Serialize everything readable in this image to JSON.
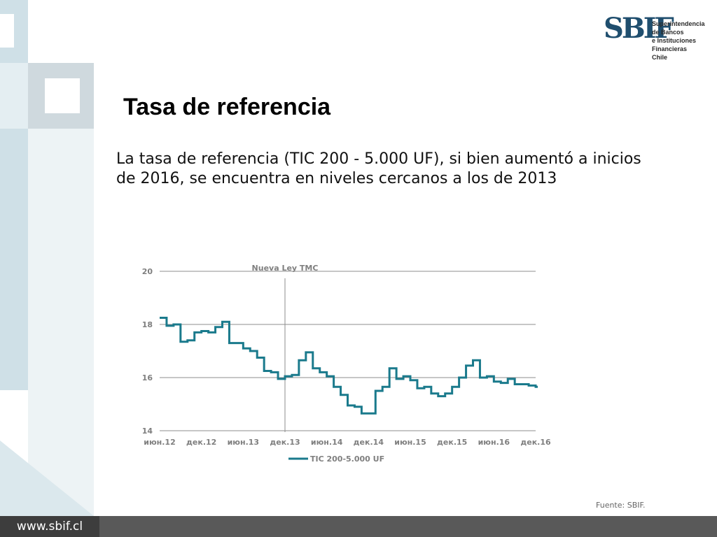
{
  "logo": {
    "mark": "SBIF",
    "lines": [
      "Superintendencia",
      "de Bancos",
      "e Instituciones",
      "Financieras",
      "Chile"
    ]
  },
  "title": "Tasa de referencia",
  "subtitle": "La tasa de referencia (TIC 200 - 5.000 UF), si bien aumentó a inicios de 2016, se encuentra en niveles cercanos a los de 2013",
  "source": "Fuente: SBIF.",
  "footer": {
    "url": "www.sbif.cl"
  },
  "colors": {
    "series": "#1a7a8c",
    "footer": "#595959",
    "logo": "#1f4e6e"
  },
  "chart_data": {
    "type": "line",
    "step": true,
    "ylim": [
      14,
      20
    ],
    "yticks": [
      14,
      16,
      18,
      20
    ],
    "grid": true,
    "xticks": [
      "июн.12",
      "дек.12",
      "июн.13",
      "дек.13",
      "июн.14",
      "дек.14",
      "июн.15",
      "дек.15",
      "июн.16",
      "дек.16"
    ],
    "x_months": [
      "2012-06",
      "2012-07",
      "2012-08",
      "2012-09",
      "2012-10",
      "2012-11",
      "2012-12",
      "2013-01",
      "2013-02",
      "2013-03",
      "2013-04",
      "2013-05",
      "2013-06",
      "2013-07",
      "2013-08",
      "2013-09",
      "2013-10",
      "2013-11",
      "2013-12",
      "2014-01",
      "2014-02",
      "2014-03",
      "2014-04",
      "2014-05",
      "2014-06",
      "2014-07",
      "2014-08",
      "2014-09",
      "2014-10",
      "2014-11",
      "2014-12",
      "2015-01",
      "2015-02",
      "2015-03",
      "2015-04",
      "2015-05",
      "2015-06",
      "2015-07",
      "2015-08",
      "2015-09",
      "2015-10",
      "2015-11",
      "2015-12",
      "2016-01",
      "2016-02",
      "2016-03",
      "2016-04",
      "2016-05",
      "2016-06",
      "2016-07",
      "2016-08",
      "2016-09",
      "2016-10",
      "2016-11",
      "2016-12"
    ],
    "series": [
      {
        "name": "TIC 200-5.000 UF",
        "values": [
          18.25,
          17.95,
          18.0,
          17.35,
          17.4,
          17.7,
          17.75,
          17.7,
          17.9,
          18.1,
          17.3,
          17.3,
          17.1,
          17.0,
          16.75,
          16.25,
          16.2,
          15.95,
          16.05,
          16.1,
          16.65,
          16.95,
          16.35,
          16.2,
          16.05,
          15.65,
          15.35,
          14.95,
          14.9,
          14.65,
          14.65,
          15.5,
          15.65,
          16.35,
          15.95,
          16.05,
          15.9,
          15.6,
          15.65,
          15.4,
          15.3,
          15.4,
          15.65,
          16.0,
          16.45,
          16.65,
          16.0,
          16.05,
          15.85,
          15.8,
          15.95,
          15.75,
          15.75,
          15.7,
          15.65
        ]
      }
    ],
    "annotations": [
      {
        "text": "Nueva Ley TMC",
        "x": "2013-12"
      }
    ]
  }
}
